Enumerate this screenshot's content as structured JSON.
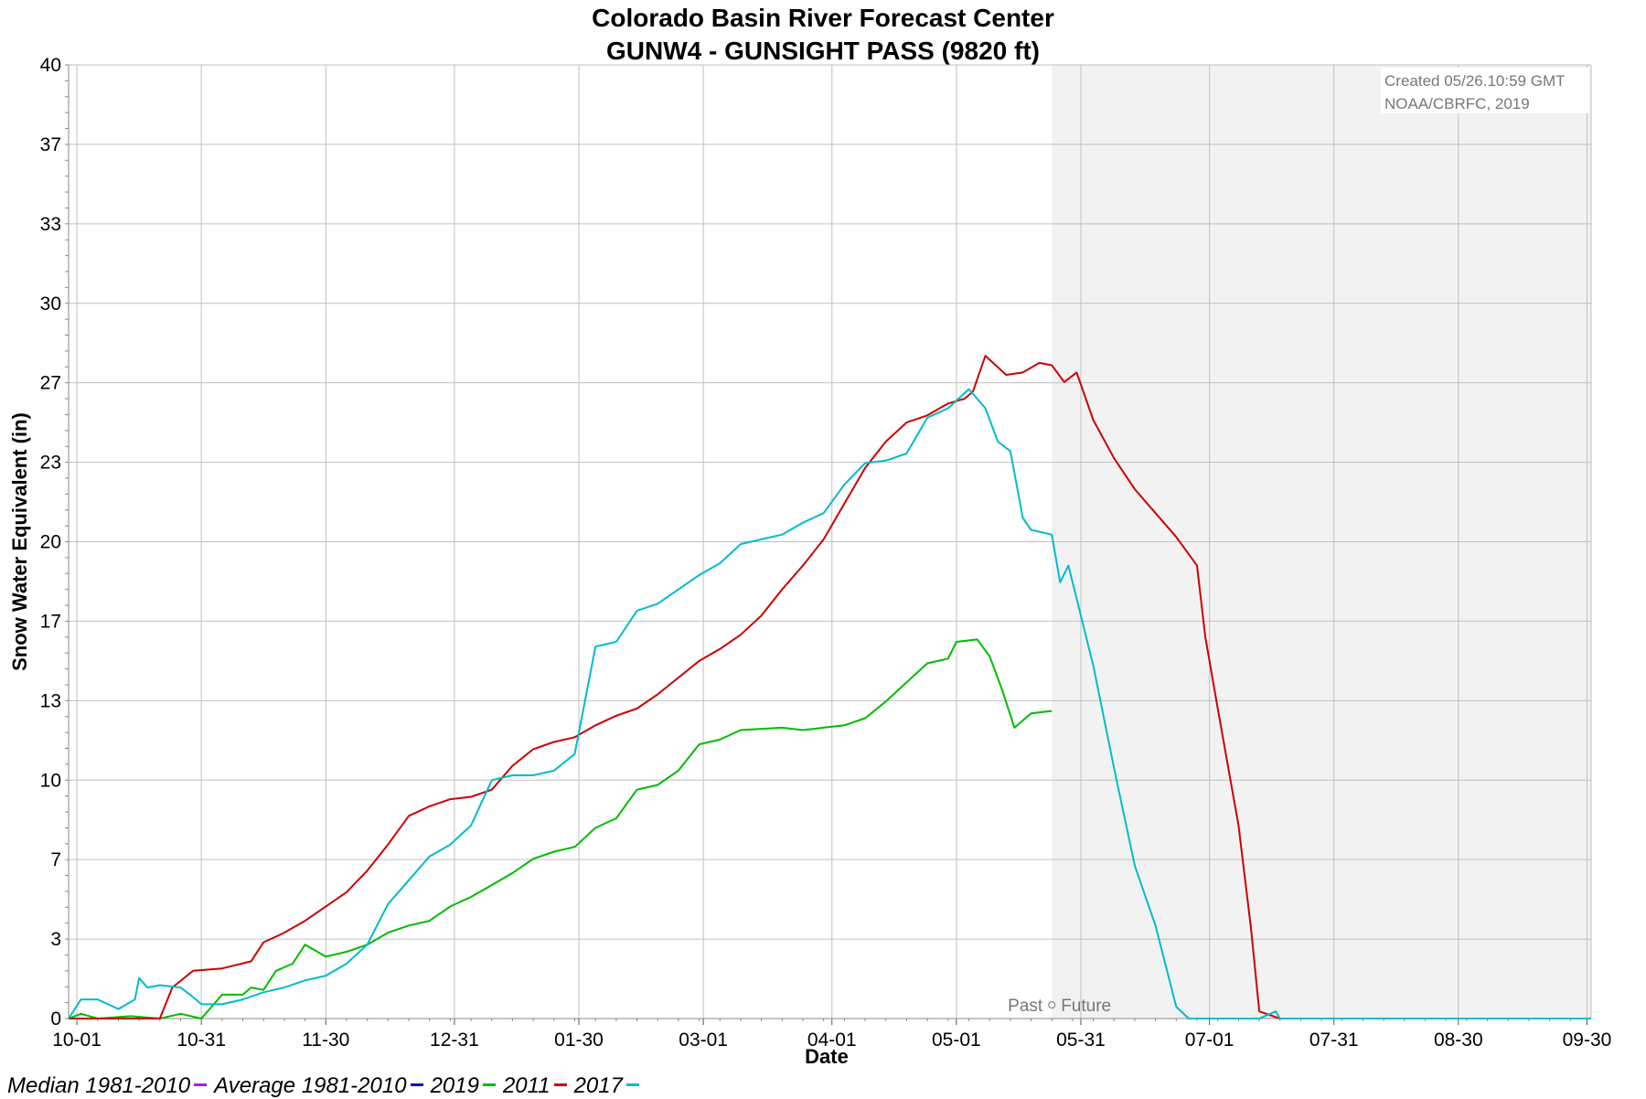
{
  "title": {
    "line1": "Colorado Basin River Forecast Center",
    "line2": "GUNW4 - GUNSIGHT PASS (9820 ft)"
  },
  "credit": {
    "line1": "Created 05/26.10:59 GMT",
    "line2": "NOAA/CBRFC, 2019"
  },
  "past_future_label": {
    "past": "Past",
    "future": "Future"
  },
  "legend": [
    {
      "name": "Median 1981-2010",
      "color": "#a020f0"
    },
    {
      "name": "Average 1981-2010",
      "color": "#0000cc"
    },
    {
      "name": "2019",
      "color": "#00bb00"
    },
    {
      "name": "2011",
      "color": "#cc0000"
    },
    {
      "name": "2017",
      "color": "#00bbcc"
    }
  ],
  "chart_data": {
    "type": "line",
    "xlabel": "Date",
    "ylabel": "Snow Water Equivalent (in)",
    "x_unit": "days since Oct 1",
    "xlim": [
      -2,
      365
    ],
    "ylim": [
      0,
      40
    ],
    "x_ticks": [
      {
        "day": 0,
        "label": "10-01"
      },
      {
        "day": 30,
        "label": "10-31"
      },
      {
        "day": 60,
        "label": "11-30"
      },
      {
        "day": 91,
        "label": "12-31"
      },
      {
        "day": 121,
        "label": "01-30"
      },
      {
        "day": 151,
        "label": "03-01"
      },
      {
        "day": 182,
        "label": "04-01"
      },
      {
        "day": 212,
        "label": "05-01"
      },
      {
        "day": 242,
        "label": "05-31"
      },
      {
        "day": 273,
        "label": "07-01"
      },
      {
        "day": 303,
        "label": "07-31"
      },
      {
        "day": 333,
        "label": "08-30"
      },
      {
        "day": 364,
        "label": "09-30"
      }
    ],
    "y_ticks": [
      {
        "value": 0,
        "label": "0"
      },
      {
        "value": 3.33,
        "label": "3"
      },
      {
        "value": 6.67,
        "label": "7"
      },
      {
        "value": 10,
        "label": "10"
      },
      {
        "value": 13.33,
        "label": "13"
      },
      {
        "value": 16.67,
        "label": "17"
      },
      {
        "value": 20,
        "label": "20"
      },
      {
        "value": 23.33,
        "label": "23"
      },
      {
        "value": 26.67,
        "label": "27"
      },
      {
        "value": 30,
        "label": "30"
      },
      {
        "value": 33.33,
        "label": "33"
      },
      {
        "value": 36.67,
        "label": "37"
      },
      {
        "value": 40,
        "label": "40"
      }
    ],
    "future_start_day": 235,
    "grid": true,
    "series": [
      {
        "name": "2019",
        "color": "#00bb00",
        "points": [
          [
            -2,
            0
          ],
          [
            1,
            0.2
          ],
          [
            5,
            0
          ],
          [
            13,
            0.1
          ],
          [
            20,
            0
          ],
          [
            25,
            0.2
          ],
          [
            30,
            0
          ],
          [
            35,
            1
          ],
          [
            40,
            1
          ],
          [
            42,
            1.3
          ],
          [
            45,
            1.2
          ],
          [
            48,
            2
          ],
          [
            52,
            2.3
          ],
          [
            55,
            3.1
          ],
          [
            60,
            2.6
          ],
          [
            65,
            2.8
          ],
          [
            70,
            3.1
          ],
          [
            75,
            3.6
          ],
          [
            80,
            3.9
          ],
          [
            85,
            4.1
          ],
          [
            90,
            4.7
          ],
          [
            95,
            5.1
          ],
          [
            100,
            5.6
          ],
          [
            105,
            6.1
          ],
          [
            110,
            6.7
          ],
          [
            115,
            7
          ],
          [
            120,
            7.2
          ],
          [
            125,
            8
          ],
          [
            130,
            8.4
          ],
          [
            135,
            9.6
          ],
          [
            140,
            9.8
          ],
          [
            145,
            10.4
          ],
          [
            150,
            11.5
          ],
          [
            155,
            11.7
          ],
          [
            160,
            12.1
          ],
          [
            170,
            12.2
          ],
          [
            175,
            12.1
          ],
          [
            180,
            12.2
          ],
          [
            185,
            12.3
          ],
          [
            190,
            12.6
          ],
          [
            195,
            13.3
          ],
          [
            200,
            14.1
          ],
          [
            205,
            14.9
          ],
          [
            210,
            15.1
          ],
          [
            212,
            15.8
          ],
          [
            217,
            15.9
          ],
          [
            220,
            15.2
          ],
          [
            223,
            13.8
          ],
          [
            226,
            12.2
          ],
          [
            230,
            12.8
          ],
          [
            235,
            12.9
          ]
        ]
      },
      {
        "name": "2011",
        "color": "#cc0000",
        "points": [
          [
            -2,
            0
          ],
          [
            20,
            0
          ],
          [
            23,
            1.3
          ],
          [
            28,
            2
          ],
          [
            35,
            2.1
          ],
          [
            42,
            2.4
          ],
          [
            45,
            3.2
          ],
          [
            50,
            3.6
          ],
          [
            55,
            4.1
          ],
          [
            60,
            4.7
          ],
          [
            65,
            5.3
          ],
          [
            70,
            6.2
          ],
          [
            75,
            7.3
          ],
          [
            80,
            8.5
          ],
          [
            85,
            8.9
          ],
          [
            90,
            9.2
          ],
          [
            95,
            9.3
          ],
          [
            100,
            9.6
          ],
          [
            105,
            10.6
          ],
          [
            110,
            11.3
          ],
          [
            115,
            11.6
          ],
          [
            120,
            11.8
          ],
          [
            125,
            12.3
          ],
          [
            130,
            12.7
          ],
          [
            135,
            13
          ],
          [
            140,
            13.6
          ],
          [
            145,
            14.3
          ],
          [
            150,
            15
          ],
          [
            155,
            15.5
          ],
          [
            160,
            16.1
          ],
          [
            165,
            16.9
          ],
          [
            170,
            18
          ],
          [
            175,
            19
          ],
          [
            180,
            20.1
          ],
          [
            185,
            21.6
          ],
          [
            190,
            23.1
          ],
          [
            195,
            24.2
          ],
          [
            200,
            25
          ],
          [
            205,
            25.3
          ],
          [
            210,
            25.8
          ],
          [
            214,
            26
          ],
          [
            216,
            26.3
          ],
          [
            219,
            27.8
          ],
          [
            224,
            27
          ],
          [
            228,
            27.1
          ],
          [
            232,
            27.5
          ],
          [
            235,
            27.4
          ],
          [
            238,
            26.7
          ],
          [
            241,
            27.1
          ],
          [
            245,
            25.1
          ],
          [
            250,
            23.5
          ],
          [
            255,
            22.2
          ],
          [
            260,
            21.2
          ],
          [
            265,
            20.2
          ],
          [
            270,
            19
          ],
          [
            272,
            16
          ],
          [
            275,
            13
          ],
          [
            280,
            8.1
          ],
          [
            283,
            3.8
          ],
          [
            285,
            0.3
          ],
          [
            290,
            0
          ],
          [
            365,
            0
          ]
        ]
      },
      {
        "name": "2017",
        "color": "#00bbcc",
        "points": [
          [
            -2,
            0
          ],
          [
            1,
            0.8
          ],
          [
            5,
            0.8
          ],
          [
            10,
            0.4
          ],
          [
            14,
            0.8
          ],
          [
            15,
            1.7
          ],
          [
            17,
            1.3
          ],
          [
            20,
            1.4
          ],
          [
            25,
            1.3
          ],
          [
            28,
            0.9
          ],
          [
            30,
            0.6
          ],
          [
            35,
            0.6
          ],
          [
            40,
            0.8
          ],
          [
            45,
            1.1
          ],
          [
            50,
            1.3
          ],
          [
            55,
            1.6
          ],
          [
            60,
            1.8
          ],
          [
            65,
            2.3
          ],
          [
            70,
            3.1
          ],
          [
            75,
            4.8
          ],
          [
            80,
            5.8
          ],
          [
            85,
            6.8
          ],
          [
            90,
            7.3
          ],
          [
            95,
            8.1
          ],
          [
            100,
            10
          ],
          [
            105,
            10.2
          ],
          [
            110,
            10.2
          ],
          [
            115,
            10.4
          ],
          [
            120,
            11.1
          ],
          [
            125,
            15.6
          ],
          [
            130,
            15.8
          ],
          [
            135,
            17.1
          ],
          [
            140,
            17.4
          ],
          [
            145,
            18
          ],
          [
            150,
            18.6
          ],
          [
            155,
            19.1
          ],
          [
            160,
            19.9
          ],
          [
            165,
            20.1
          ],
          [
            170,
            20.3
          ],
          [
            175,
            20.8
          ],
          [
            180,
            21.2
          ],
          [
            185,
            22.4
          ],
          [
            190,
            23.3
          ],
          [
            195,
            23.4
          ],
          [
            200,
            23.7
          ],
          [
            205,
            25.2
          ],
          [
            210,
            25.6
          ],
          [
            215,
            26.4
          ],
          [
            219,
            25.6
          ],
          [
            222,
            24.2
          ],
          [
            225,
            23.8
          ],
          [
            228,
            21
          ],
          [
            230,
            20.5
          ],
          [
            235,
            20.3
          ],
          [
            237,
            18.3
          ],
          [
            239,
            19
          ],
          [
            245,
            14.8
          ],
          [
            250,
            10.5
          ],
          [
            255,
            6.4
          ],
          [
            260,
            3.9
          ],
          [
            265,
            0.5
          ],
          [
            268,
            0
          ],
          [
            285,
            0
          ],
          [
            289,
            0.3
          ],
          [
            290,
            0
          ],
          [
            365,
            0
          ]
        ]
      }
    ]
  }
}
